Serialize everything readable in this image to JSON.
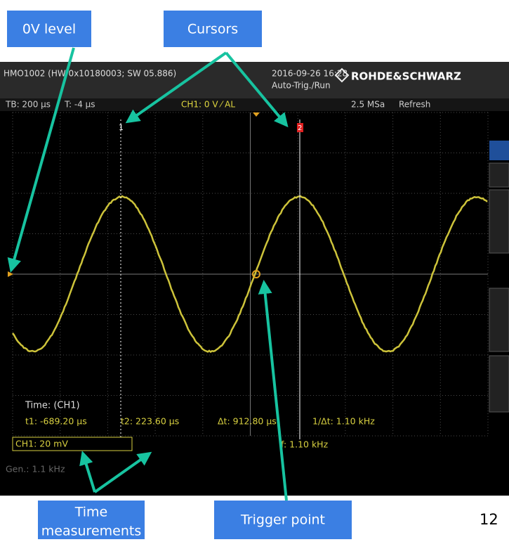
{
  "callouts": {
    "zero_level": "0V level",
    "cursors": "Cursors",
    "time_measurements": [
      "Time",
      "measurements"
    ],
    "trigger_point": "Trigger point"
  },
  "slide_number": "12",
  "scope": {
    "header": {
      "device": "HMO1002 (HW 0x10180003; SW 05.886)",
      "datetime": "2016-09-26 16:28",
      "mode": "Auto-Trig./Run",
      "brand": "ROHDE&SCHWARZ"
    },
    "status": {
      "timebase": "TB: 200 µs",
      "trigger_time": "T: -4 µs",
      "channel": "CH1: 0 V ⁄ AL",
      "sample_rate": "2.5 MSa",
      "acquisition": "Refresh"
    },
    "cursor_labels": [
      "1",
      "2"
    ],
    "measurement": {
      "title": "Time: (CH1)",
      "t1": "t1: -689.20 µs",
      "t2": "t2: 223.60 µs",
      "dt": "Δt: 912.80 µs",
      "inv_dt": "1/Δt: 1.10 kHz"
    },
    "channel_scale": "CH1: 20 mV",
    "frequency": "f: 1.10 kHz",
    "generator": "Gen.: 1.1 kHz"
  }
}
